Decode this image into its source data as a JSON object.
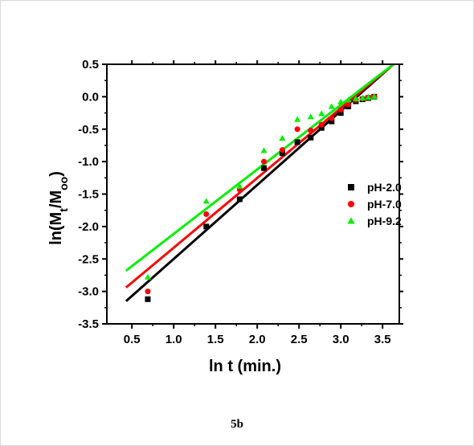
{
  "chart_data": {
    "type": "scatter",
    "title": "",
    "xlabel": "ln t (min.)",
    "ylabel": "ln(Mt/M∞)",
    "ylabel_parts": {
      "prefix": "ln(M",
      "sub1": "t",
      "mid": "/M",
      "sub2": "oo",
      "suffix": ")"
    },
    "xlim": [
      0.2,
      3.7
    ],
    "ylim": [
      -3.5,
      0.5
    ],
    "xticks": [
      0.5,
      1.0,
      1.5,
      2.0,
      2.5,
      3.0,
      3.5
    ],
    "xtick_labels": [
      "0.5",
      "1.0",
      "1.5",
      "2.0",
      "2.5",
      "3.0",
      "3.5"
    ],
    "yticks": [
      0.5,
      0.0,
      -0.5,
      -1.0,
      -1.5,
      -2.0,
      -2.5,
      -3.0,
      -3.5
    ],
    "ytick_labels": [
      "0.5",
      "0.0",
      "-0.5",
      "-1.0",
      "-1.5",
      "-2.0",
      "-2.5",
      "-3.0",
      "-3.5"
    ],
    "legend_position": "right",
    "grid": false,
    "series": [
      {
        "name": "pH-2.0",
        "color": "#000000",
        "marker": "square",
        "x": [
          0.69,
          1.39,
          1.79,
          2.08,
          2.3,
          2.48,
          2.64,
          2.77,
          2.89,
          3.0,
          3.09,
          3.18,
          3.26,
          3.33,
          3.4
        ],
        "y": [
          -3.12,
          -2.0,
          -1.58,
          -1.1,
          -0.87,
          -0.7,
          -0.63,
          -0.48,
          -0.38,
          -0.25,
          -0.15,
          -0.07,
          -0.04,
          -0.02,
          0.0
        ],
        "fit": {
          "x1": 0.43,
          "y1": -3.15,
          "x2": 3.63,
          "y2": 0.5
        }
      },
      {
        "name": "pH-7.0",
        "color": "#ff0000",
        "marker": "circle",
        "x": [
          0.69,
          1.39,
          1.79,
          2.08,
          2.3,
          2.48,
          2.64,
          2.77,
          2.89,
          3.0,
          3.09,
          3.18,
          3.26,
          3.33,
          3.4
        ],
        "y": [
          -3.0,
          -1.81,
          -1.43,
          -1.0,
          -0.82,
          -0.5,
          -0.52,
          -0.43,
          -0.33,
          -0.2,
          -0.12,
          -0.05,
          -0.03,
          -0.01,
          0.0
        ],
        "fit": {
          "x1": 0.43,
          "y1": -2.94,
          "x2": 3.63,
          "y2": 0.5
        }
      },
      {
        "name": "pH-9.2",
        "color": "#00ee00",
        "marker": "triangle",
        "x": [
          0.69,
          1.39,
          1.79,
          2.08,
          2.3,
          2.48,
          2.64,
          2.77,
          2.89,
          3.0,
          3.09,
          3.18,
          3.26,
          3.33,
          3.4
        ],
        "y": [
          -2.78,
          -1.61,
          -1.38,
          -0.83,
          -0.64,
          -0.35,
          -0.31,
          -0.26,
          -0.15,
          -0.08,
          -0.05,
          -0.03,
          -0.02,
          -0.01,
          0.0
        ],
        "fit": {
          "x1": 0.43,
          "y1": -2.68,
          "x2": 3.63,
          "y2": 0.5
        }
      }
    ]
  },
  "caption": "5b"
}
